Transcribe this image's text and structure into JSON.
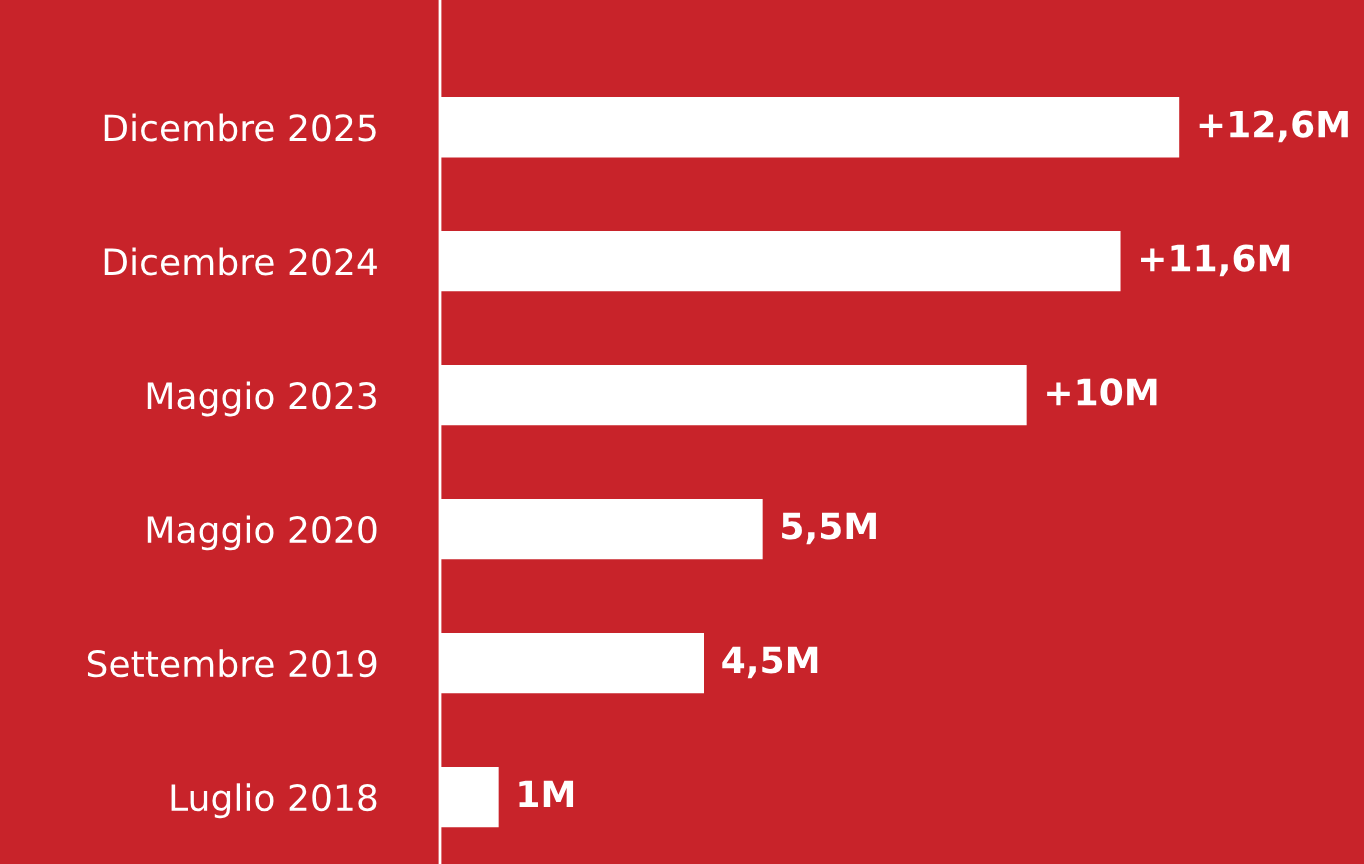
{
  "chart_data": {
    "type": "bar",
    "orientation": "horizontal",
    "categories": [
      "Dicembre 2025",
      "Dicembre 2024",
      "Maggio 2023",
      "Maggio 2020",
      "Settembre 2019",
      "Luglio 2018"
    ],
    "values": [
      12.6,
      11.6,
      10,
      5.5,
      4.5,
      1
    ],
    "value_labels": [
      "+12,6M",
      "+11,6M",
      "+10M",
      "5,5M",
      "4,5M",
      "1M"
    ],
    "color": "#ffffff",
    "grid": false,
    "legend": false
  }
}
